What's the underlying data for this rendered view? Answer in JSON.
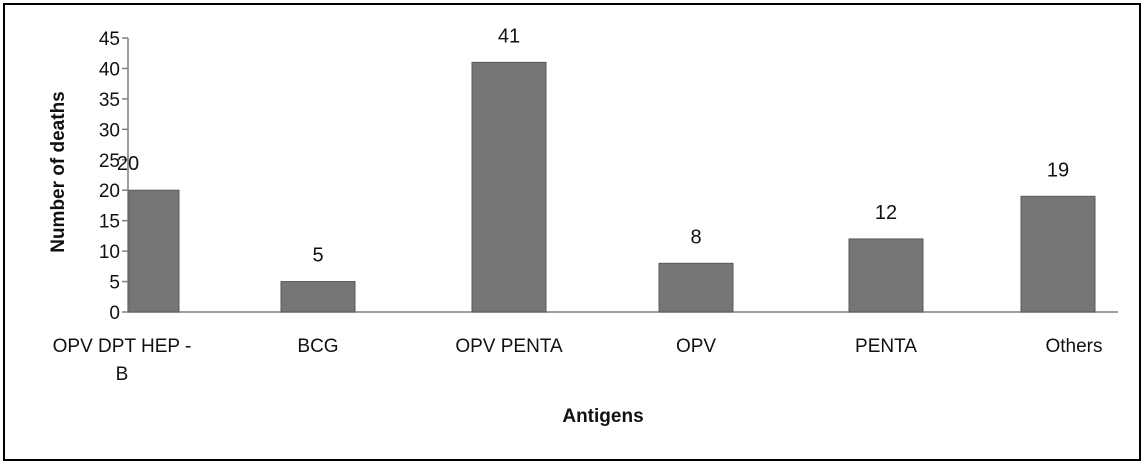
{
  "chart_data": {
    "type": "bar",
    "categories": [
      [
        "OPV DPT HEP -",
        "B"
      ],
      [
        "BCG"
      ],
      [
        "OPV PENTA"
      ],
      [
        "OPV"
      ],
      [
        "PENTA"
      ],
      [
        "Others"
      ]
    ],
    "values": [
      20,
      5,
      41,
      8,
      12,
      19
    ],
    "data_labels": [
      "20",
      "5",
      "41",
      "8",
      "12",
      "19"
    ],
    "xlabel": "Antigens",
    "ylabel": "Number of deaths",
    "ylim": [
      0,
      45
    ],
    "yticks": [
      0,
      5,
      10,
      15,
      20,
      25,
      30,
      35,
      40,
      45
    ],
    "grid": false,
    "legend": "none",
    "colors": {
      "bar": "#767676",
      "bar_stroke": "#5a5a5a",
      "axis": "#7f7f7f"
    }
  }
}
